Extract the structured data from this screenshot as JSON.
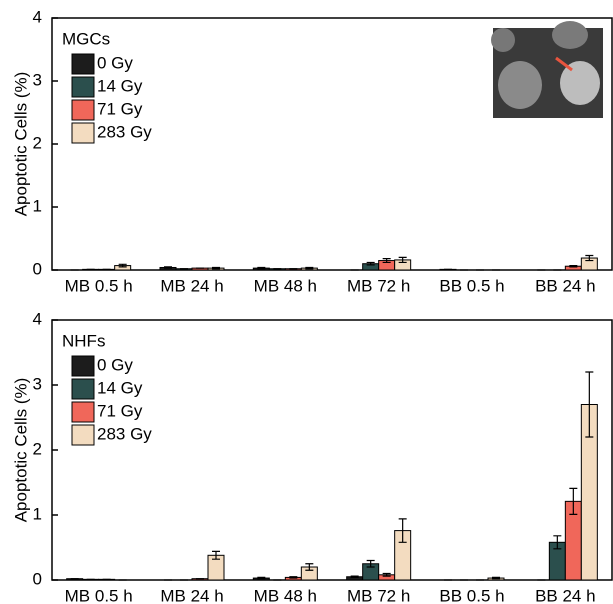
{
  "chart_data": [
    {
      "type": "bar",
      "legend_title": "MGCs",
      "y_label": "Apoptotic Cells (%)",
      "categories": [
        "MB 0.5 h",
        "MB 24 h",
        "MB 48 h",
        "MB 72 h",
        "BB 0.5 h",
        "BB 24 h"
      ],
      "series": [
        {
          "name": "0 Gy",
          "color": "#1c1c1c",
          "values": [
            0,
            0.04,
            0.03,
            0,
            0.01,
            0
          ],
          "errors": [
            0,
            0.01,
            0.01,
            0,
            0,
            0
          ]
        },
        {
          "name": "14 Gy",
          "color": "#2b4f4d",
          "values": [
            0.01,
            0.02,
            0.02,
            0.1,
            0,
            0
          ],
          "errors": [
            0,
            0,
            0,
            0.02,
            0,
            0
          ]
        },
        {
          "name": "71 Gy",
          "color": "#f0675a",
          "values": [
            0.01,
            0.03,
            0.02,
            0.15,
            0,
            0.06
          ],
          "errors": [
            0,
            0,
            0,
            0.03,
            0,
            0.01
          ]
        },
        {
          "name": "283 Gy",
          "color": "#f3dcc0",
          "values": [
            0.07,
            0.03,
            0.03,
            0.16,
            0,
            0.19
          ],
          "errors": [
            0.02,
            0.01,
            0.01,
            0.04,
            0,
            0.04
          ]
        }
      ],
      "ylim": [
        0,
        4
      ],
      "yticks": [
        0,
        1,
        2,
        3,
        4
      ]
    },
    {
      "type": "bar",
      "legend_title": "NHFs",
      "y_label": "Apoptotic Cells (%)",
      "categories": [
        "MB 0.5 h",
        "MB 24 h",
        "MB 48 h",
        "MB 72 h",
        "BB 0.5 h",
        "BB 24 h"
      ],
      "series": [
        {
          "name": "0 Gy",
          "color": "#1c1c1c",
          "values": [
            0.02,
            0,
            0.03,
            0.05,
            0,
            0
          ],
          "errors": [
            0,
            0,
            0.01,
            0.01,
            0,
            0
          ]
        },
        {
          "name": "14 Gy",
          "color": "#2b4f4d",
          "values": [
            0.01,
            0,
            0,
            0.25,
            0,
            0.58
          ],
          "errors": [
            0,
            0,
            0,
            0.05,
            0,
            0.1
          ]
        },
        {
          "name": "71 Gy",
          "color": "#f0675a",
          "values": [
            0.01,
            0.02,
            0.04,
            0.08,
            0,
            1.21
          ],
          "errors": [
            0,
            0,
            0.01,
            0.02,
            0,
            0.2
          ]
        },
        {
          "name": "283 Gy",
          "color": "#f3dcc0",
          "values": [
            0,
            0.38,
            0.2,
            0.76,
            0.03,
            2.7
          ],
          "errors": [
            0,
            0.06,
            0.05,
            0.18,
            0.01,
            0.5
          ]
        }
      ],
      "ylim": [
        0,
        4
      ],
      "yticks": [
        0,
        1,
        2,
        3,
        4
      ]
    }
  ]
}
